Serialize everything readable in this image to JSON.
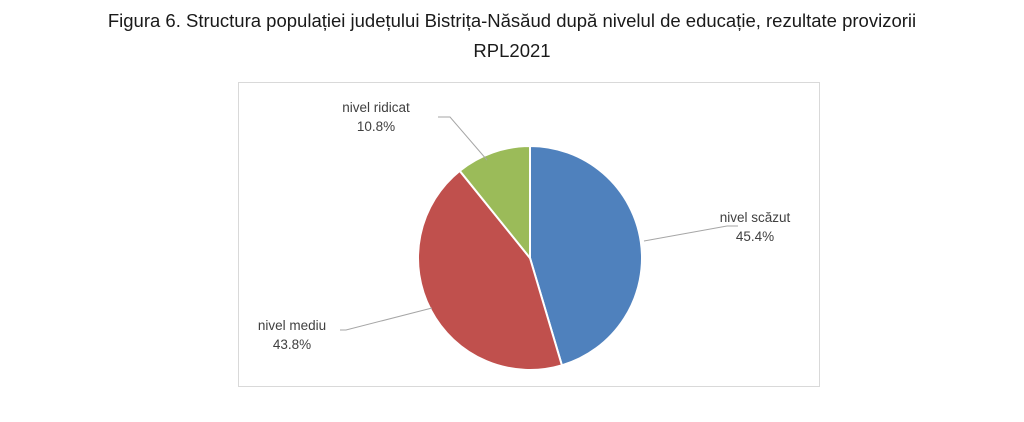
{
  "title": {
    "line1": "Figura 6. Structura populației județului Bistrița-Năsăud după nivelul de educație, rezultate provizorii",
    "line2": "RPL2021"
  },
  "chart_data": {
    "type": "pie",
    "title": "Figura 6. Structura populației județului Bistrița-Năsăud după nivelul de educație, rezultate provizorii RPL2021",
    "slices": [
      {
        "label": "nivel scăzut",
        "value": 45.4,
        "value_label": "45.4%",
        "color": "#4f81bd"
      },
      {
        "label": "nivel mediu",
        "value": 43.8,
        "value_label": "43.8%",
        "color": "#c0504d"
      },
      {
        "label": "nivel ridicat",
        "value": 10.8,
        "value_label": "10.8%",
        "color": "#9bbb59"
      }
    ],
    "legend": false
  }
}
